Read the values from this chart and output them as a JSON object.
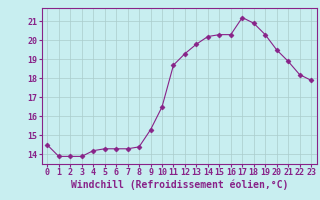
{
  "x": [
    0,
    1,
    2,
    3,
    4,
    5,
    6,
    7,
    8,
    9,
    10,
    11,
    12,
    13,
    14,
    15,
    16,
    17,
    18,
    19,
    20,
    21,
    22,
    23
  ],
  "y": [
    14.5,
    13.9,
    13.9,
    13.9,
    14.2,
    14.3,
    14.3,
    14.3,
    14.4,
    15.3,
    16.5,
    18.7,
    19.3,
    19.8,
    20.2,
    20.3,
    20.3,
    21.2,
    20.9,
    20.3,
    19.5,
    18.9,
    18.2,
    17.9
  ],
  "line_color": "#882288",
  "marker": "D",
  "marker_size": 2.5,
  "bg_color": "#c8eef0",
  "grid_color": "#aacccc",
  "xlabel": "Windchill (Refroidissement éolien,°C)",
  "ylim": [
    13.5,
    21.7
  ],
  "xlim": [
    -0.5,
    23.5
  ],
  "yticks": [
    14,
    15,
    16,
    17,
    18,
    19,
    20,
    21
  ],
  "xtick_labels": [
    "0",
    "1",
    "2",
    "3",
    "4",
    "5",
    "6",
    "7",
    "8",
    "9",
    "10",
    "11",
    "12",
    "13",
    "14",
    "15",
    "16",
    "17",
    "18",
    "19",
    "20",
    "21",
    "22",
    "23"
  ],
  "tick_color": "#882288",
  "label_fontsize": 7.0,
  "tick_fontsize": 6.0,
  "spine_color": "#882288"
}
